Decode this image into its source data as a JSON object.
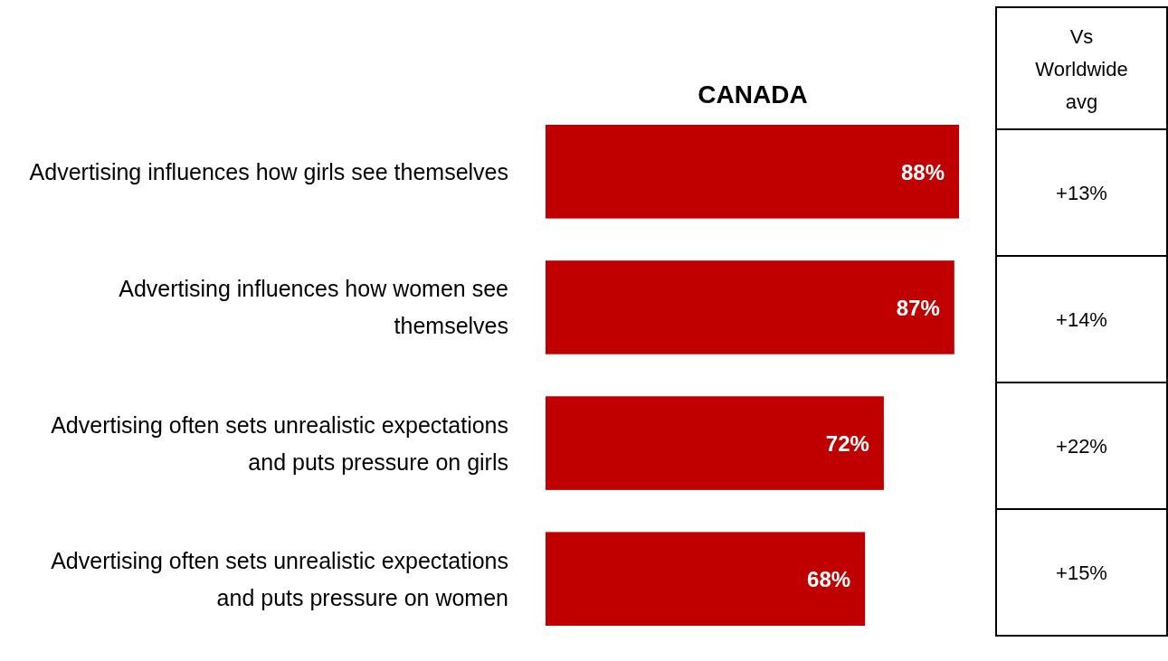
{
  "chart_data": [
    {
      "type": "bar",
      "orientation": "horizontal",
      "title": "CANADA",
      "categories": [
        "Advertising influences how girls see themselves",
        "Advertising influences how women see themselves",
        "Advertising often sets unrealistic expectations and puts pressure on girls",
        "Advertising often sets unrealistic expectations and puts pressure on women"
      ],
      "values": [
        88,
        87,
        72,
        68
      ],
      "color": "#c00000",
      "value_labels": [
        "88%",
        "87%",
        "72%",
        "68%"
      ]
    },
    {
      "type": "other",
      "title": "Vs Worldwide avg",
      "annotations": [
        "+13%",
        "+14%",
        "+22%",
        "+15%"
      ]
    }
  ]
}
